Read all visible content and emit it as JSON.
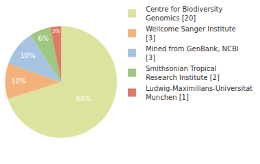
{
  "chart_data": {
    "type": "pie",
    "categories": [
      "Centre for Biodiversity Genomics [20]",
      "Wellcome Sanger Institute [3]",
      "Mined from GenBank, NCBI [3]",
      "Smithsonian Tropical Research Institute [2]",
      "Ludwig-Maximilians-Universitat Munchen [1]"
    ],
    "values": [
      68,
      10,
      10,
      6,
      3
    ],
    "value_labels": [
      "68%",
      "10%",
      "10%",
      "6%",
      "3%"
    ],
    "colors": [
      "#dde39e",
      "#f3b27c",
      "#a7c3e2",
      "#9ec882",
      "#de7b66"
    ],
    "data_labels": true,
    "legend": "right"
  }
}
